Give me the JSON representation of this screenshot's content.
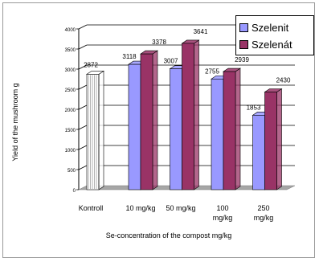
{
  "chart_data": {
    "type": "bar",
    "categories": [
      "Kontroll",
      "10 mg/kg",
      "50 mg/kg",
      "100\nmg/kg",
      "250\nmg/kg"
    ],
    "control": {
      "name": "",
      "value": 2872,
      "color": "#ffffff"
    },
    "series": [
      {
        "name": "Szelenit",
        "values": [
          null,
          3118,
          3007,
          2755,
          1853
        ],
        "labels": [
          "",
          "3118",
          "3007",
          "2755",
          "1853"
        ],
        "color": "#9999ff"
      },
      {
        "name": "Szelenát",
        "values": [
          null,
          3378,
          3641,
          2939,
          2430
        ],
        "labels": [
          "",
          "3378",
          "3641",
          "2939",
          "2430"
        ],
        "color": "#993366"
      }
    ],
    "control_label": "2872",
    "ylim": [
      0,
      4000
    ],
    "yticks": [
      0,
      500,
      1000,
      1500,
      2000,
      2500,
      3000,
      3500,
      4000
    ],
    "ylabel": "Yield of the mushroom g",
    "xlabel": "Se-concentration of the compost  mg/kg",
    "grid": true,
    "legend_position": "top-right",
    "style": "3d"
  }
}
